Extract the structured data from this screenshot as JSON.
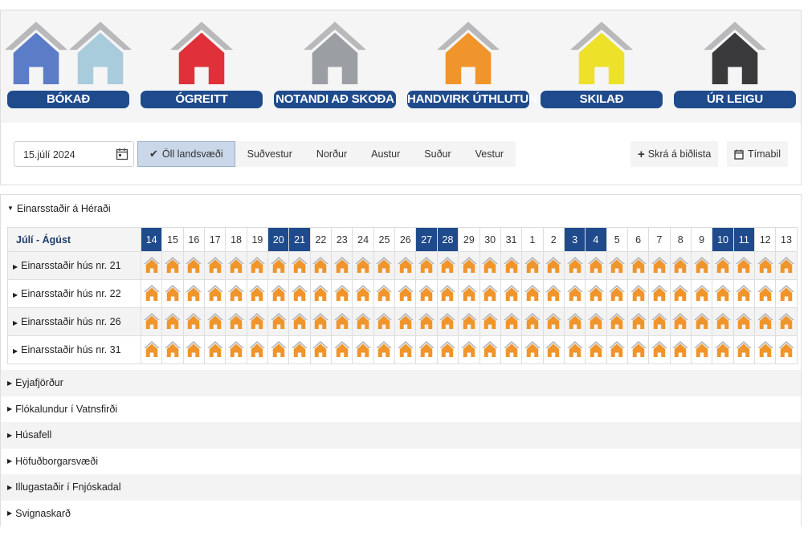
{
  "legend": [
    {
      "label": "BÓKAÐ",
      "colors": [
        "#5b7cc7",
        "#a9ccdd"
      ]
    },
    {
      "label": "ÓGREITT",
      "colors": [
        "#e0313a"
      ]
    },
    {
      "label": "NOTANDI AÐ SKOÐA",
      "colors": [
        "#9b9ea3"
      ]
    },
    {
      "label": "HANDVIRK ÚTHLUTUN",
      "colors": [
        "#f0952b"
      ]
    },
    {
      "label": "SKILAÐ",
      "colors": [
        "#ede12a"
      ]
    },
    {
      "label": "ÚR LEIGU",
      "colors": [
        "#3a3a3c"
      ]
    }
  ],
  "roof_color": "#b9b9bb",
  "toolbar": {
    "date_value": "15.júlí 2024",
    "date_icon": "calendar-icon",
    "regions": [
      {
        "label": "Öll landsvæði",
        "active": true
      },
      {
        "label": "Suðvestur",
        "active": false
      },
      {
        "label": "Norður",
        "active": false
      },
      {
        "label": "Austur",
        "active": false
      },
      {
        "label": "Suður",
        "active": false
      },
      {
        "label": "Vestur",
        "active": false
      }
    ],
    "waitlist_label": "Skrá á biðlista",
    "period_label": "Tímabil"
  },
  "open_group": {
    "name": "Einarsstaðir á Héraði",
    "month_label": "Júlí - Ágúst",
    "days": [
      {
        "d": "14",
        "hl": true
      },
      {
        "d": "15",
        "hl": false
      },
      {
        "d": "16",
        "hl": false
      },
      {
        "d": "17",
        "hl": false
      },
      {
        "d": "18",
        "hl": false
      },
      {
        "d": "19",
        "hl": false
      },
      {
        "d": "20",
        "hl": true
      },
      {
        "d": "21",
        "hl": true
      },
      {
        "d": "22",
        "hl": false
      },
      {
        "d": "23",
        "hl": false
      },
      {
        "d": "24",
        "hl": false
      },
      {
        "d": "25",
        "hl": false
      },
      {
        "d": "26",
        "hl": false
      },
      {
        "d": "27",
        "hl": true
      },
      {
        "d": "28",
        "hl": true
      },
      {
        "d": "29",
        "hl": false
      },
      {
        "d": "30",
        "hl": false
      },
      {
        "d": "31",
        "hl": false
      },
      {
        "d": "1",
        "hl": false
      },
      {
        "d": "2",
        "hl": false
      },
      {
        "d": "3",
        "hl": true
      },
      {
        "d": "4",
        "hl": true
      },
      {
        "d": "5",
        "hl": false
      },
      {
        "d": "6",
        "hl": false
      },
      {
        "d": "7",
        "hl": false
      },
      {
        "d": "8",
        "hl": false
      },
      {
        "d": "9",
        "hl": false
      },
      {
        "d": "10",
        "hl": true
      },
      {
        "d": "11",
        "hl": true
      },
      {
        "d": "12",
        "hl": false
      },
      {
        "d": "13",
        "hl": false
      }
    ],
    "houses": [
      {
        "name": "Einarsstaðir hús nr. 21",
        "status": "handvirk-uthlutun"
      },
      {
        "name": "Einarsstaðir hús nr. 22",
        "status": "handvirk-uthlutun"
      },
      {
        "name": "Einarsstaðir hús nr. 26",
        "status": "handvirk-uthlutun"
      },
      {
        "name": "Einarsstaðir hús nr. 31",
        "status": "handvirk-uthlutun"
      }
    ],
    "cell_color": "#f0952b"
  },
  "other_groups": [
    "Eyjafjörður",
    "Flókalundur í Vatnsfirði",
    "Húsafell",
    "Höfuðborgarsvæði",
    "Illugastaðir í Fnjóskadal",
    "Svignaskarð"
  ]
}
